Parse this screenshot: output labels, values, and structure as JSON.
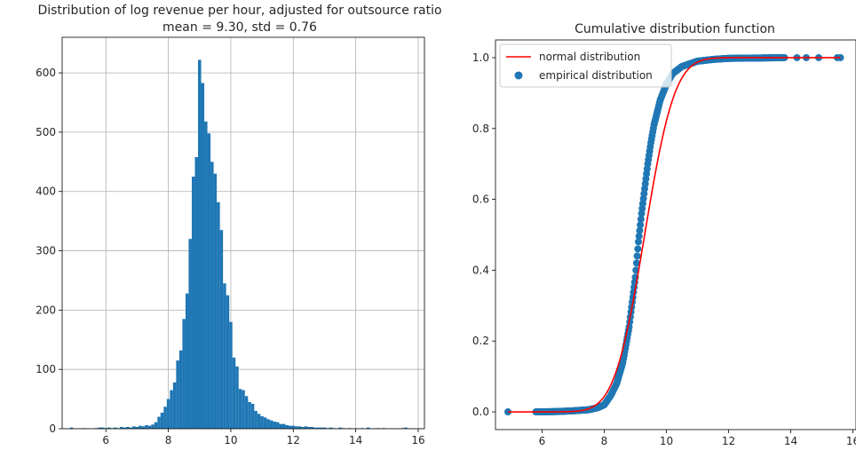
{
  "chart_data": [
    {
      "type": "bar",
      "title": "Distribution of log revenue per hour, adjusted for outsource ratio",
      "subtitle": "mean = 9.30, std = 0.76",
      "xlabel": "",
      "ylabel": "",
      "xlim": [
        4.6,
        16.2
      ],
      "ylim": [
        0,
        660
      ],
      "grid": true,
      "color": "#1f77b4",
      "x_ticks": [
        6,
        8,
        10,
        12,
        14,
        16
      ],
      "y_ticks": [
        0,
        100,
        200,
        300,
        400,
        500,
        600
      ],
      "bin_width": 0.1,
      "bins": [
        [
          4.9,
          2
        ],
        [
          5.3,
          1
        ],
        [
          5.7,
          1
        ],
        [
          5.8,
          2
        ],
        [
          5.9,
          2
        ],
        [
          6.0,
          1
        ],
        [
          6.1,
          2
        ],
        [
          6.2,
          1
        ],
        [
          6.3,
          2
        ],
        [
          6.4,
          1
        ],
        [
          6.5,
          3
        ],
        [
          6.6,
          2
        ],
        [
          6.7,
          3
        ],
        [
          6.8,
          2
        ],
        [
          6.9,
          4
        ],
        [
          7.0,
          3
        ],
        [
          7.1,
          5
        ],
        [
          7.2,
          4
        ],
        [
          7.3,
          6
        ],
        [
          7.4,
          5
        ],
        [
          7.5,
          7
        ],
        [
          7.6,
          11
        ],
        [
          7.7,
          20
        ],
        [
          7.8,
          27
        ],
        [
          7.9,
          37
        ],
        [
          8.0,
          50
        ],
        [
          8.1,
          65
        ],
        [
          8.2,
          78
        ],
        [
          8.3,
          115
        ],
        [
          8.4,
          132
        ],
        [
          8.5,
          185
        ],
        [
          8.6,
          228
        ],
        [
          8.7,
          320
        ],
        [
          8.8,
          425
        ],
        [
          8.9,
          458
        ],
        [
          9.0,
          622
        ],
        [
          9.1,
          583
        ],
        [
          9.2,
          518
        ],
        [
          9.3,
          498
        ],
        [
          9.4,
          450
        ],
        [
          9.5,
          430
        ],
        [
          9.6,
          382
        ],
        [
          9.7,
          335
        ],
        [
          9.8,
          245
        ],
        [
          9.9,
          225
        ],
        [
          10.0,
          180
        ],
        [
          10.1,
          120
        ],
        [
          10.2,
          105
        ],
        [
          10.3,
          67
        ],
        [
          10.4,
          65
        ],
        [
          10.5,
          55
        ],
        [
          10.6,
          45
        ],
        [
          10.7,
          42
        ],
        [
          10.8,
          30
        ],
        [
          10.9,
          25
        ],
        [
          11.0,
          21
        ],
        [
          11.1,
          19
        ],
        [
          11.2,
          16
        ],
        [
          11.3,
          14
        ],
        [
          11.4,
          12
        ],
        [
          11.5,
          11
        ],
        [
          11.6,
          8
        ],
        [
          11.7,
          8
        ],
        [
          11.8,
          6
        ],
        [
          11.9,
          5
        ],
        [
          12.0,
          5
        ],
        [
          12.1,
          4
        ],
        [
          12.2,
          4
        ],
        [
          12.3,
          3
        ],
        [
          12.4,
          4
        ],
        [
          12.5,
          3
        ],
        [
          12.6,
          3
        ],
        [
          12.7,
          2
        ],
        [
          12.8,
          2
        ],
        [
          12.9,
          2
        ],
        [
          13.0,
          2
        ],
        [
          13.1,
          1
        ],
        [
          13.2,
          2
        ],
        [
          13.3,
          1
        ],
        [
          13.5,
          2
        ],
        [
          13.6,
          1
        ],
        [
          13.8,
          1
        ],
        [
          14.2,
          1
        ],
        [
          14.4,
          2
        ],
        [
          14.7,
          1
        ],
        [
          14.9,
          1
        ],
        [
          15.5,
          1
        ],
        [
          15.6,
          2
        ]
      ]
    },
    {
      "type": "line",
      "title": "Cumulative distribution function",
      "xlabel": "",
      "ylabel": "",
      "xlim": [
        4.5,
        16.1
      ],
      "ylim": [
        -0.05,
        1.05
      ],
      "grid": false,
      "legend_position": "top-left",
      "x_ticks": [
        6,
        8,
        10,
        12,
        14,
        16
      ],
      "y_ticks": [
        0.0,
        0.2,
        0.4,
        0.6,
        0.8,
        1.0
      ],
      "y_tick_labels": [
        "0.0",
        "0.2",
        "0.4",
        "0.6",
        "0.8",
        "1.0"
      ],
      "series": [
        {
          "name": "normal distribution",
          "kind": "line",
          "color": "#ff0000",
          "mean": 9.3,
          "std": 0.76,
          "x_range": [
            4.9,
            15.6
          ]
        },
        {
          "name": "empirical distribution",
          "kind": "scatter",
          "color": "#1f77b4",
          "points": [
            [
              4.9,
              0.0
            ],
            [
              6.0,
              0.0
            ],
            [
              6.5,
              0.001
            ],
            [
              7.0,
              0.003
            ],
            [
              7.5,
              0.006
            ],
            [
              7.8,
              0.012
            ],
            [
              8.0,
              0.02
            ],
            [
              8.2,
              0.045
            ],
            [
              8.4,
              0.08
            ],
            [
              8.6,
              0.14
            ],
            [
              8.8,
              0.24
            ],
            [
              9.0,
              0.38
            ],
            [
              9.1,
              0.48
            ],
            [
              9.2,
              0.56
            ],
            [
              9.3,
              0.63
            ],
            [
              9.4,
              0.7
            ],
            [
              9.5,
              0.76
            ],
            [
              9.6,
              0.81
            ],
            [
              9.8,
              0.88
            ],
            [
              10.0,
              0.925
            ],
            [
              10.2,
              0.955
            ],
            [
              10.5,
              0.975
            ],
            [
              11.0,
              0.99
            ],
            [
              11.5,
              0.995
            ],
            [
              12.0,
              0.998
            ],
            [
              13.0,
              0.999
            ],
            [
              13.7,
              1.0
            ],
            [
              14.2,
              1.0
            ],
            [
              14.5,
              1.0
            ],
            [
              14.9,
              1.0
            ],
            [
              15.5,
              1.0
            ],
            [
              15.6,
              1.0
            ]
          ]
        }
      ]
    }
  ]
}
